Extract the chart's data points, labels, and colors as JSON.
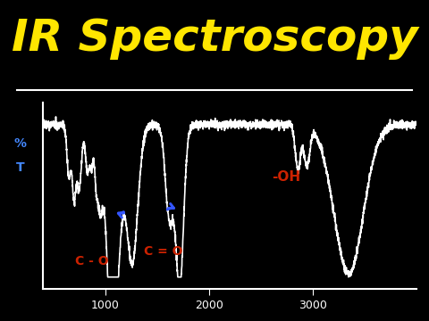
{
  "title": "IR Spectroscopy",
  "title_color": "#FFE600",
  "title_fontsize": 36,
  "bg_color": "#000000",
  "spectrum_color": "#FFFFFF",
  "line_color": "#FFFFFF",
  "ylabel_color": "#4488FF",
  "xticks": [
    3000,
    2000,
    1000
  ],
  "oh_label": "-OH",
  "oh_color": "#CC2200",
  "co_double_label": "C = O",
  "co_single_label": "C - O",
  "functional_color": "#CC2200",
  "arrow_color": "#3355FF",
  "separator_color": "#FFFFFF"
}
